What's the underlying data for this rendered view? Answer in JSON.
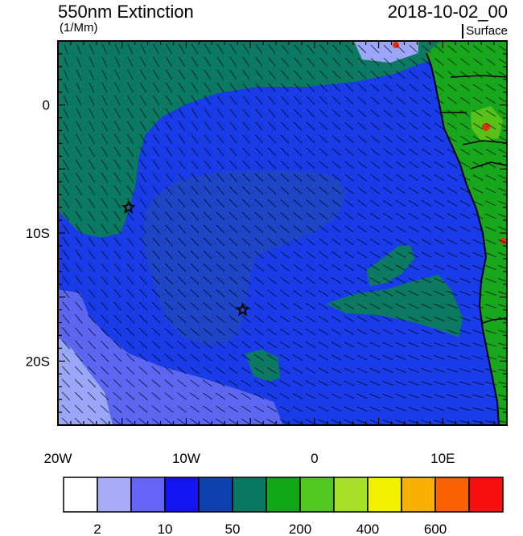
{
  "title": "550nm Extinction",
  "units": "(1/Mm)",
  "datetime": "2018-10-02_00",
  "level": "Surface",
  "colors": {
    "frame": "#000000",
    "ocean_background": "#1a3ce8",
    "deep_plume": "#1d45c6",
    "mid_band": "#0c7a62",
    "low_band": "#5c66f0",
    "lowest_band": "#9aa6f7",
    "land_green": "#18a61c",
    "land_yellowgreen": "#56c218",
    "land_hot": "#e03010"
  },
  "x_ticks": [
    {
      "label": "20W",
      "lon": -20
    },
    {
      "label": "10W",
      "lon": -10
    },
    {
      "label": "0",
      "lon": 0
    },
    {
      "label": "10E",
      "lon": 10
    }
  ],
  "y_ticks": [
    {
      "label": "0",
      "lat": 0
    },
    {
      "label": "10S",
      "lat": -10
    },
    {
      "label": "20S",
      "lat": -20
    }
  ],
  "lon_range": [
    -20,
    15
  ],
  "lat_range": [
    -25,
    5
  ],
  "markers": [
    {
      "name": "star-marker-north",
      "lon": -14.5,
      "lat": -8
    },
    {
      "name": "star-marker-south",
      "lon": -5.6,
      "lat": -16
    }
  ],
  "colorbar": {
    "colors": [
      "#ffffff",
      "#a8acf8",
      "#6464f8",
      "#1414f0",
      "#1040b0",
      "#087860",
      "#10a818",
      "#50c820",
      "#a8e028",
      "#f0f000",
      "#f8b000",
      "#f86000",
      "#f81010"
    ],
    "labels": [
      {
        "text": "2",
        "boundary": 1
      },
      {
        "text": "10",
        "boundary": 3
      },
      {
        "text": "50",
        "boundary": 5
      },
      {
        "text": "200",
        "boundary": 7
      },
      {
        "text": "400",
        "boundary": 9
      },
      {
        "text": "600",
        "boundary": 11
      }
    ]
  }
}
